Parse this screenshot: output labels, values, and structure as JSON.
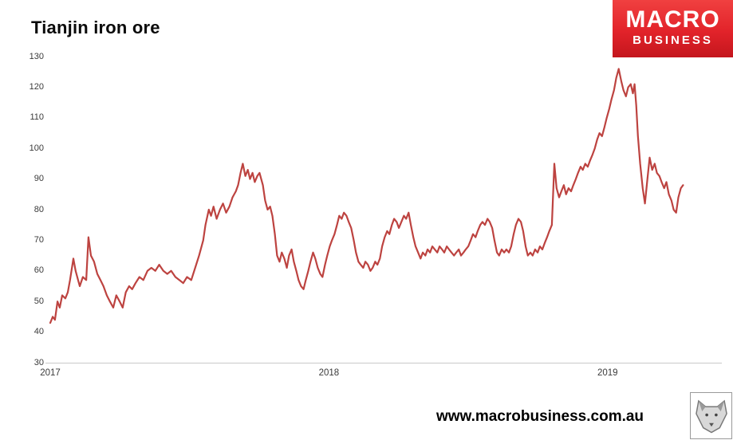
{
  "header": {
    "title": "Tianjin iron ore",
    "logo": {
      "line1": "MACRO",
      "line2": "BUSINESS",
      "bg_color": "#e2232a",
      "text_color": "#ffffff"
    }
  },
  "footer": {
    "url": "www.macrobusiness.com.au"
  },
  "chart_data": {
    "type": "line",
    "title": "Tianjin iron ore",
    "xlabel": "",
    "ylabel": "",
    "xlim": [
      2017.0,
      2019.41
    ],
    "ylim": [
      30,
      130
    ],
    "yticks": [
      30,
      40,
      50,
      60,
      70,
      80,
      90,
      100,
      110,
      120,
      130
    ],
    "xticks": [
      2017,
      2018,
      2019
    ],
    "xtick_labels": [
      "2017",
      "2018",
      "2019"
    ],
    "grid": false,
    "legend_position": "none",
    "line_color": "#bd4340",
    "series": [
      {
        "name": "Tianjin iron ore",
        "points": [
          [
            2017.0,
            43
          ],
          [
            2017.009,
            45
          ],
          [
            2017.017,
            44
          ],
          [
            2017.026,
            50
          ],
          [
            2017.034,
            48
          ],
          [
            2017.043,
            52
          ],
          [
            2017.054,
            51
          ],
          [
            2017.063,
            53
          ],
          [
            2017.071,
            57
          ],
          [
            2017.083,
            64
          ],
          [
            2017.091,
            60
          ],
          [
            2017.1,
            57
          ],
          [
            2017.106,
            55
          ],
          [
            2017.117,
            58
          ],
          [
            2017.129,
            57
          ],
          [
            2017.137,
            71
          ],
          [
            2017.146,
            65
          ],
          [
            2017.157,
            63
          ],
          [
            2017.169,
            59
          ],
          [
            2017.18,
            57
          ],
          [
            2017.191,
            55
          ],
          [
            2017.203,
            52
          ],
          [
            2017.214,
            50
          ],
          [
            2017.226,
            48
          ],
          [
            2017.237,
            52
          ],
          [
            2017.249,
            50
          ],
          [
            2017.26,
            48
          ],
          [
            2017.271,
            53
          ],
          [
            2017.283,
            55
          ],
          [
            2017.294,
            54
          ],
          [
            2017.306,
            56
          ],
          [
            2017.32,
            58
          ],
          [
            2017.334,
            57
          ],
          [
            2017.349,
            60
          ],
          [
            2017.363,
            61
          ],
          [
            2017.377,
            60
          ],
          [
            2017.391,
            62
          ],
          [
            2017.406,
            60
          ],
          [
            2017.42,
            59
          ],
          [
            2017.434,
            60
          ],
          [
            2017.449,
            58
          ],
          [
            2017.463,
            57
          ],
          [
            2017.477,
            56
          ],
          [
            2017.491,
            58
          ],
          [
            2017.506,
            57
          ],
          [
            2017.52,
            61
          ],
          [
            2017.534,
            65
          ],
          [
            2017.549,
            70
          ],
          [
            2017.557,
            75
          ],
          [
            2017.569,
            80
          ],
          [
            2017.577,
            78
          ],
          [
            2017.586,
            81
          ],
          [
            2017.597,
            77
          ],
          [
            2017.609,
            80
          ],
          [
            2017.62,
            82
          ],
          [
            2017.631,
            79
          ],
          [
            2017.643,
            81
          ],
          [
            2017.654,
            84
          ],
          [
            2017.666,
            86
          ],
          [
            2017.674,
            88
          ],
          [
            2017.683,
            92
          ],
          [
            2017.691,
            95
          ],
          [
            2017.7,
            91
          ],
          [
            2017.709,
            93
          ],
          [
            2017.717,
            90
          ],
          [
            2017.726,
            92
          ],
          [
            2017.734,
            89
          ],
          [
            2017.743,
            91
          ],
          [
            2017.751,
            92
          ],
          [
            2017.763,
            88
          ],
          [
            2017.771,
            83
          ],
          [
            2017.78,
            80
          ],
          [
            2017.789,
            81
          ],
          [
            2017.797,
            78
          ],
          [
            2017.806,
            72
          ],
          [
            2017.814,
            65
          ],
          [
            2017.823,
            63
          ],
          [
            2017.831,
            66
          ],
          [
            2017.84,
            64
          ],
          [
            2017.849,
            61
          ],
          [
            2017.857,
            65
          ],
          [
            2017.866,
            67
          ],
          [
            2017.874,
            63
          ],
          [
            2017.883,
            60
          ],
          [
            2017.891,
            57
          ],
          [
            2017.9,
            55
          ],
          [
            2017.909,
            54
          ],
          [
            2017.917,
            57
          ],
          [
            2017.926,
            60
          ],
          [
            2017.934,
            63
          ],
          [
            2017.943,
            66
          ],
          [
            2017.951,
            64
          ],
          [
            2017.96,
            61
          ],
          [
            2017.969,
            59
          ],
          [
            2017.977,
            58
          ],
          [
            2017.986,
            62
          ],
          [
            2017.994,
            65
          ],
          [
            2018.003,
            68
          ],
          [
            2018.011,
            70
          ],
          [
            2018.02,
            72
          ],
          [
            2018.029,
            75
          ],
          [
            2018.037,
            78
          ],
          [
            2018.046,
            77
          ],
          [
            2018.054,
            79
          ],
          [
            2018.063,
            78
          ],
          [
            2018.071,
            76
          ],
          [
            2018.08,
            74
          ],
          [
            2018.089,
            70
          ],
          [
            2018.097,
            66
          ],
          [
            2018.106,
            63
          ],
          [
            2018.114,
            62
          ],
          [
            2018.123,
            61
          ],
          [
            2018.131,
            63
          ],
          [
            2018.14,
            62
          ],
          [
            2018.149,
            60
          ],
          [
            2018.157,
            61
          ],
          [
            2018.166,
            63
          ],
          [
            2018.174,
            62
          ],
          [
            2018.183,
            64
          ],
          [
            2018.191,
            68
          ],
          [
            2018.2,
            71
          ],
          [
            2018.209,
            73
          ],
          [
            2018.217,
            72
          ],
          [
            2018.226,
            75
          ],
          [
            2018.234,
            77
          ],
          [
            2018.243,
            76
          ],
          [
            2018.251,
            74
          ],
          [
            2018.26,
            76
          ],
          [
            2018.269,
            78
          ],
          [
            2018.277,
            77
          ],
          [
            2018.286,
            79
          ],
          [
            2018.294,
            75
          ],
          [
            2018.303,
            71
          ],
          [
            2018.311,
            68
          ],
          [
            2018.32,
            66
          ],
          [
            2018.329,
            64
          ],
          [
            2018.337,
            66
          ],
          [
            2018.346,
            65
          ],
          [
            2018.354,
            67
          ],
          [
            2018.363,
            66
          ],
          [
            2018.371,
            68
          ],
          [
            2018.38,
            67
          ],
          [
            2018.389,
            66
          ],
          [
            2018.397,
            68
          ],
          [
            2018.406,
            67
          ],
          [
            2018.414,
            66
          ],
          [
            2018.423,
            68
          ],
          [
            2018.431,
            67
          ],
          [
            2018.44,
            66
          ],
          [
            2018.449,
            65
          ],
          [
            2018.457,
            66
          ],
          [
            2018.466,
            67
          ],
          [
            2018.474,
            65
          ],
          [
            2018.483,
            66
          ],
          [
            2018.491,
            67
          ],
          [
            2018.5,
            68
          ],
          [
            2018.509,
            70
          ],
          [
            2018.517,
            72
          ],
          [
            2018.526,
            71
          ],
          [
            2018.534,
            73
          ],
          [
            2018.543,
            75
          ],
          [
            2018.551,
            76
          ],
          [
            2018.56,
            75
          ],
          [
            2018.569,
            77
          ],
          [
            2018.577,
            76
          ],
          [
            2018.586,
            74
          ],
          [
            2018.594,
            70
          ],
          [
            2018.603,
            66
          ],
          [
            2018.611,
            65
          ],
          [
            2018.62,
            67
          ],
          [
            2018.629,
            66
          ],
          [
            2018.637,
            67
          ],
          [
            2018.646,
            66
          ],
          [
            2018.654,
            68
          ],
          [
            2018.663,
            72
          ],
          [
            2018.671,
            75
          ],
          [
            2018.68,
            77
          ],
          [
            2018.689,
            76
          ],
          [
            2018.697,
            73
          ],
          [
            2018.706,
            68
          ],
          [
            2018.714,
            65
          ],
          [
            2018.723,
            66
          ],
          [
            2018.731,
            65
          ],
          [
            2018.74,
            67
          ],
          [
            2018.749,
            66
          ],
          [
            2018.757,
            68
          ],
          [
            2018.766,
            67
          ],
          [
            2018.774,
            69
          ],
          [
            2018.783,
            71
          ],
          [
            2018.791,
            73
          ],
          [
            2018.8,
            75
          ],
          [
            2018.809,
            95
          ],
          [
            2018.817,
            87
          ],
          [
            2018.826,
            84
          ],
          [
            2018.834,
            86
          ],
          [
            2018.843,
            88
          ],
          [
            2018.851,
            85
          ],
          [
            2018.86,
            87
          ],
          [
            2018.869,
            86
          ],
          [
            2018.877,
            88
          ],
          [
            2018.886,
            90
          ],
          [
            2018.894,
            92
          ],
          [
            2018.903,
            94
          ],
          [
            2018.911,
            93
          ],
          [
            2018.92,
            95
          ],
          [
            2018.929,
            94
          ],
          [
            2018.937,
            96
          ],
          [
            2018.946,
            98
          ],
          [
            2018.954,
            100
          ],
          [
            2018.963,
            103
          ],
          [
            2018.971,
            105
          ],
          [
            2018.98,
            104
          ],
          [
            2018.989,
            107
          ],
          [
            2018.997,
            110
          ],
          [
            2019.006,
            113
          ],
          [
            2019.014,
            116
          ],
          [
            2019.023,
            119
          ],
          [
            2019.031,
            123
          ],
          [
            2019.04,
            126
          ],
          [
            2019.049,
            122
          ],
          [
            2019.057,
            119
          ],
          [
            2019.066,
            117
          ],
          [
            2019.074,
            120
          ],
          [
            2019.083,
            121
          ],
          [
            2019.091,
            118
          ],
          [
            2019.097,
            121
          ],
          [
            2019.103,
            114
          ],
          [
            2019.109,
            104
          ],
          [
            2019.117,
            95
          ],
          [
            2019.126,
            87
          ],
          [
            2019.134,
            82
          ],
          [
            2019.143,
            90
          ],
          [
            2019.151,
            97
          ],
          [
            2019.16,
            93
          ],
          [
            2019.169,
            95
          ],
          [
            2019.177,
            92
          ],
          [
            2019.186,
            91
          ],
          [
            2019.194,
            89
          ],
          [
            2019.203,
            87
          ],
          [
            2019.211,
            89
          ],
          [
            2019.22,
            85
          ],
          [
            2019.229,
            83
          ],
          [
            2019.237,
            80
          ],
          [
            2019.246,
            79
          ],
          [
            2019.254,
            84
          ],
          [
            2019.263,
            87
          ],
          [
            2019.271,
            88
          ]
        ]
      }
    ]
  }
}
